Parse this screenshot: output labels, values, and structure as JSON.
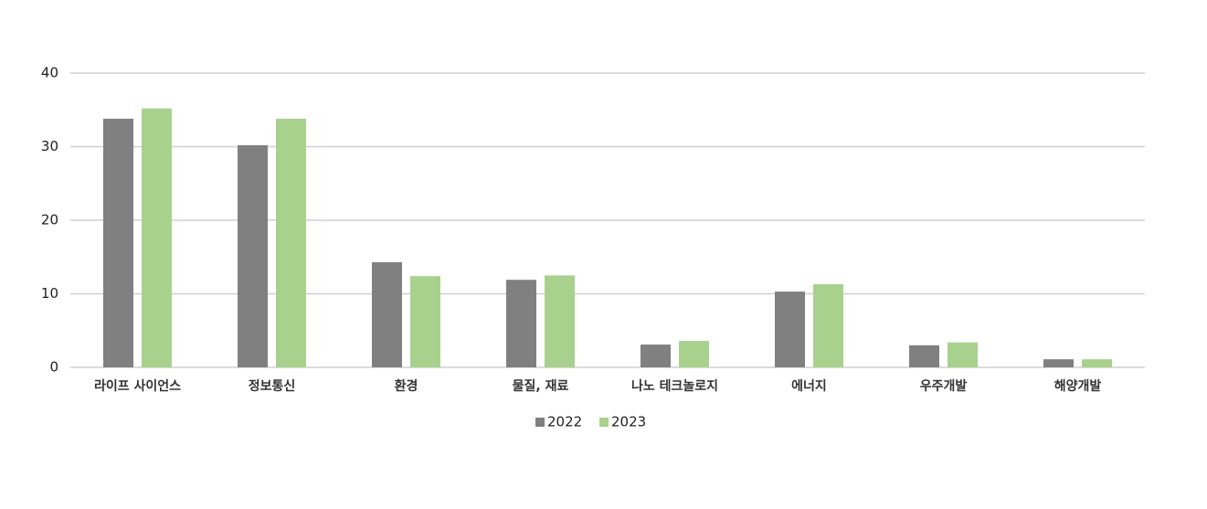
{
  "chart_data": {
    "type": "bar",
    "categories": [
      "라이프 사이언스",
      "정보통신",
      "환경",
      "물질, 재료",
      "나노 테크놀로지",
      "에너지",
      "우주개발",
      "해양개발"
    ],
    "series": [
      {
        "name": "2022",
        "color": "#808080",
        "values": [
          33.8,
          30.2,
          14.3,
          11.9,
          3.1,
          10.3,
          3.0,
          1.1
        ]
      },
      {
        "name": "2023",
        "color": "#a9d18e",
        "values": [
          35.2,
          33.8,
          12.4,
          12.5,
          3.6,
          11.3,
          3.4,
          1.1
        ]
      }
    ],
    "ylim": [
      0,
      40
    ],
    "yticks": [
      0,
      10,
      20,
      30,
      40
    ],
    "grid": true,
    "legend": "bottom"
  }
}
